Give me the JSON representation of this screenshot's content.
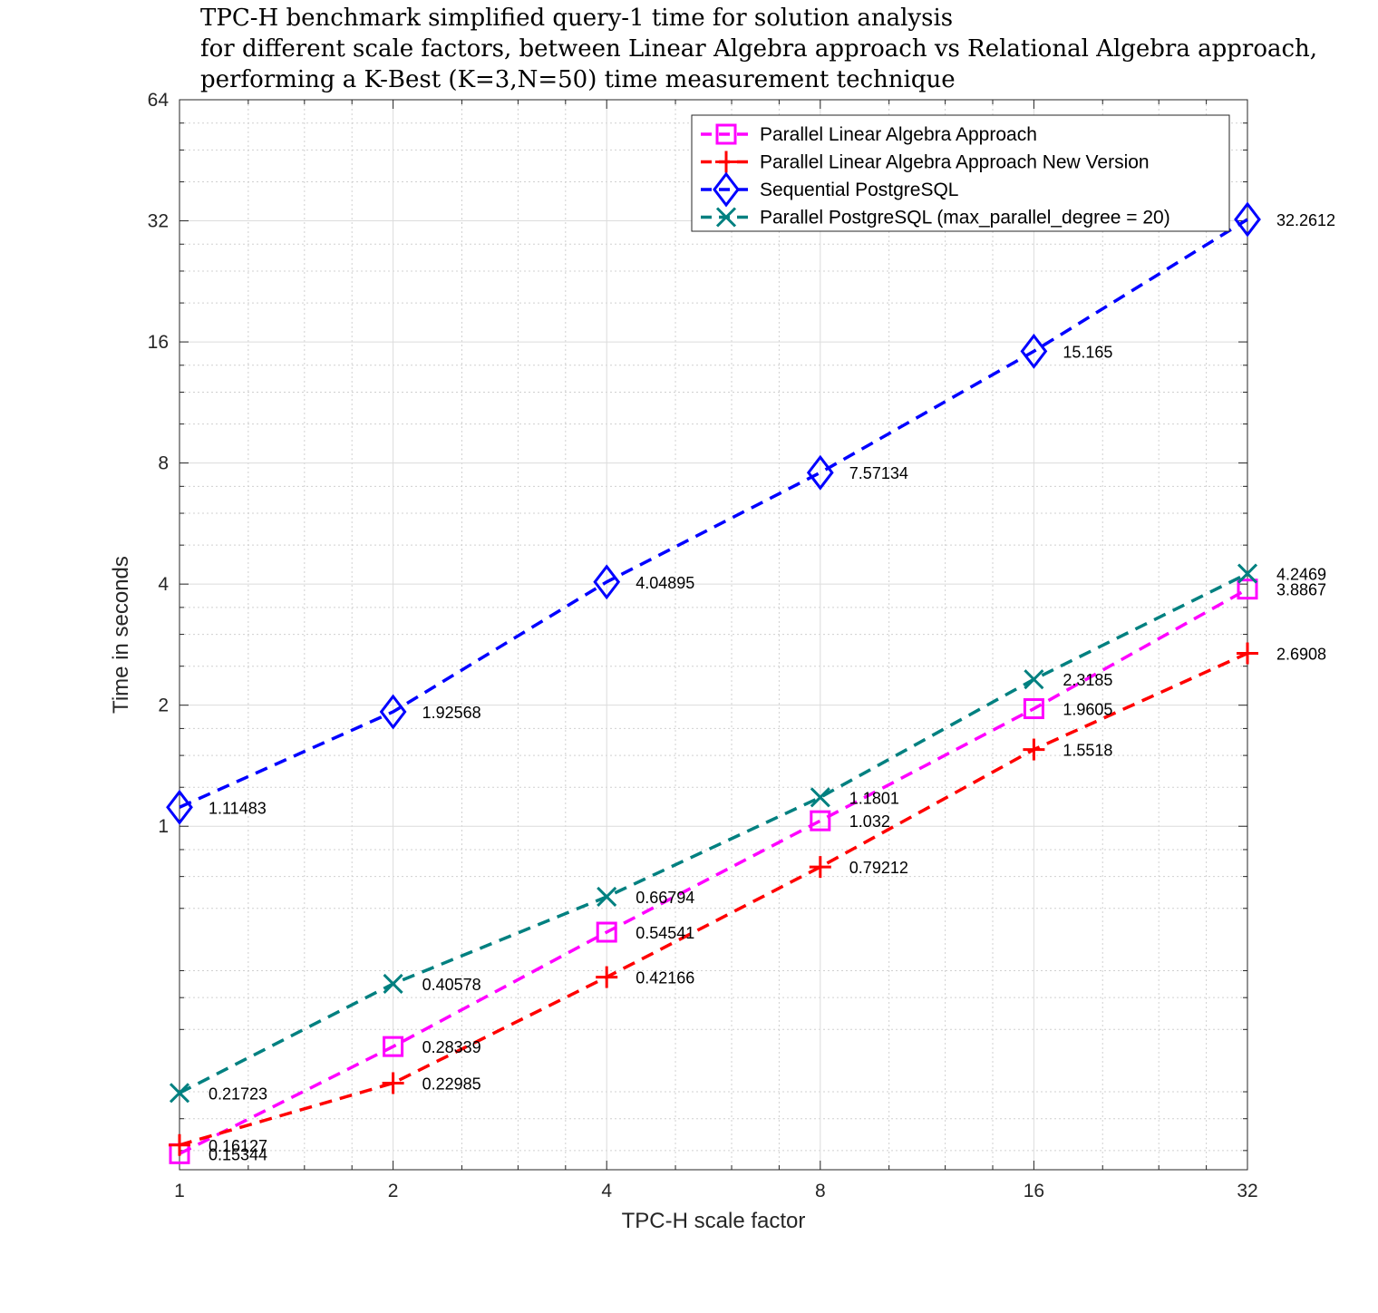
{
  "chart_data": {
    "type": "line",
    "title": [
      "TPC-H benchmark simplified query-1 time for solution analysis",
      "for different scale factors, between Linear Algebra approach vs Relational Algebra approach,",
      "performing a K-Best (K=3,N=50) time measurement technique"
    ],
    "xlabel": "TPC-H scale factor",
    "ylabel": "Time in seconds",
    "x_scale": "log2",
    "y_scale": "log2",
    "xlim": [
      1,
      32
    ],
    "ylim": [
      0.14,
      64
    ],
    "x_ticks": [
      1,
      2,
      4,
      8,
      16,
      32
    ],
    "x_tick_labels": [
      "1",
      "2",
      "4",
      "8",
      "16",
      "32"
    ],
    "y_ticks": [
      1,
      2,
      4,
      8,
      16,
      32,
      64
    ],
    "y_tick_labels": [
      "1",
      "2",
      "4",
      "8",
      "16",
      "32",
      "64"
    ],
    "grid": true,
    "legend_position": "top-right",
    "x": [
      1,
      2,
      4,
      8,
      16,
      32
    ],
    "series": [
      {
        "name": "Parallel Linear Algebra Approach",
        "color": "#ff00ff",
        "marker": "square",
        "values": [
          0.15344,
          0.28339,
          0.54541,
          1.032,
          1.9605,
          3.8867
        ],
        "labels": [
          "0.15344",
          "0.28339",
          "0.54541",
          "1.032",
          "1.9605",
          "3.8867"
        ]
      },
      {
        "name": "Parallel Linear Algebra Approach New Version",
        "color": "#ff0000",
        "marker": "plus",
        "values": [
          0.16127,
          0.22985,
          0.42166,
          0.79212,
          1.5518,
          2.6908
        ],
        "labels": [
          "0.16127",
          "0.22985",
          "0.42166",
          "0.79212",
          "1.5518",
          "2.6908"
        ]
      },
      {
        "name": "Sequential PostgreSQL",
        "color": "#0000ff",
        "marker": "diamond",
        "values": [
          1.11483,
          1.92568,
          4.04895,
          7.57134,
          15.165,
          32.2612
        ],
        "labels": [
          "1.11483",
          "1.92568",
          "4.04895",
          "7.57134",
          "15.165",
          "32.2612"
        ]
      },
      {
        "name": "Parallel PostgreSQL (max_parallel_degree = 20)",
        "color": "#008080",
        "marker": "x",
        "values": [
          0.21723,
          0.40578,
          0.66794,
          1.1801,
          2.3185,
          4.2469
        ],
        "labels": [
          "0.21723",
          "0.40578",
          "0.66794",
          "1.1801",
          "2.3185",
          "4.2469"
        ]
      }
    ]
  }
}
